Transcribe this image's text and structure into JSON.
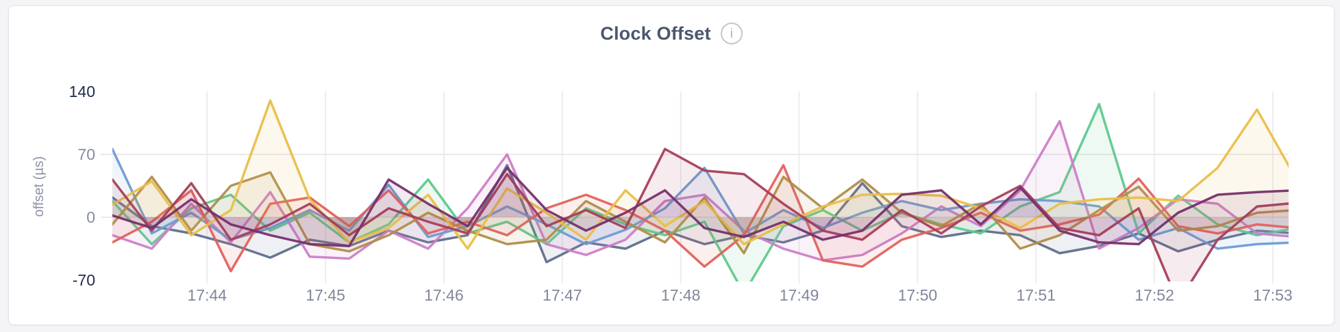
{
  "header": {
    "title": "Clock Offset",
    "info_icon": "i"
  },
  "chart_data": {
    "type": "line",
    "title": "Clock Offset",
    "xlabel": "",
    "ylabel": "offset (µs)",
    "ylim": [
      -70,
      140
    ],
    "grid": "on",
    "legend": "none",
    "x_domain_s": [
      0,
      596
    ],
    "sample_step_s": 20,
    "x_ticks": [
      {
        "label": "17:44",
        "t": 48
      },
      {
        "label": "17:45",
        "t": 108
      },
      {
        "label": "17:46",
        "t": 168
      },
      {
        "label": "17:47",
        "t": 228
      },
      {
        "label": "17:48",
        "t": 288
      },
      {
        "label": "17:49",
        "t": 348
      },
      {
        "label": "17:50",
        "t": 408
      },
      {
        "label": "17:51",
        "t": 468
      },
      {
        "label": "17:52",
        "t": 528
      },
      {
        "label": "17:53",
        "t": 588
      }
    ],
    "y_ticks": [
      {
        "label": "140",
        "v": 140,
        "strong": true,
        "grid": false
      },
      {
        "label": "70",
        "v": 70,
        "strong": false,
        "grid": true
      },
      {
        "label": "0",
        "v": 0,
        "strong": false,
        "grid": true
      },
      {
        "label": "-70",
        "v": -70,
        "strong": true,
        "grid": false
      }
    ],
    "series": [
      {
        "name": "slate",
        "color": "#5f6e8d",
        "values": [
          22,
          -10,
          -18,
          -30,
          -45,
          -25,
          -32,
          -15,
          -28,
          -20,
          58,
          -50,
          -28,
          -35,
          -15,
          -30,
          -20,
          -28,
          -15,
          38,
          -10,
          -22,
          -15,
          -20,
          -40,
          -32,
          -18,
          -38,
          -25,
          -15,
          -18
        ]
      },
      {
        "name": "green",
        "color": "#5fc98b",
        "values": [
          18,
          -30,
          10,
          25,
          -15,
          5,
          -28,
          -8,
          42,
          -18,
          -5,
          -30,
          10,
          -8,
          -20,
          -5,
          -85,
          -10,
          8,
          -15,
          5,
          -8,
          -18,
          12,
          28,
          126,
          -18,
          24,
          -8,
          -20,
          -12
        ]
      },
      {
        "name": "orchid",
        "color": "#cd7ec8",
        "values": [
          -20,
          -35,
          15,
          -28,
          28,
          -44,
          -46,
          -15,
          -35,
          10,
          70,
          -30,
          -42,
          -25,
          18,
          25,
          -15,
          -35,
          -48,
          -42,
          -18,
          12,
          -10,
          30,
          107,
          -35,
          -12,
          20,
          15,
          -18,
          -22
        ]
      },
      {
        "name": "blue",
        "color": "#6d9cd3",
        "values": [
          76,
          -18,
          5,
          -25,
          -12,
          8,
          -15,
          36,
          -22,
          -10,
          12,
          -8,
          -30,
          -14,
          10,
          55,
          -18,
          8,
          -12,
          5,
          18,
          8,
          15,
          20,
          18,
          12,
          -25,
          -12,
          -35,
          -30,
          -28
        ]
      },
      {
        "name": "red",
        "color": "#e0625d",
        "values": [
          -28,
          -5,
          30,
          -60,
          15,
          22,
          -10,
          30,
          -18,
          -5,
          -20,
          10,
          25,
          8,
          -15,
          -55,
          -20,
          58,
          -48,
          -55,
          -25,
          -12,
          5,
          -15,
          -8,
          3,
          43,
          -10,
          -18,
          -8,
          -12
        ]
      },
      {
        "name": "tan",
        "color": "#b08d4b",
        "values": [
          -8,
          45,
          -15,
          35,
          50,
          -30,
          -38,
          -20,
          5,
          -15,
          -30,
          -25,
          18,
          -5,
          -28,
          22,
          -40,
          45,
          10,
          42,
          5,
          -10,
          15,
          -35,
          -20,
          8,
          34,
          -15,
          -10,
          5,
          8
        ]
      },
      {
        "name": "yellow",
        "color": "#e9bf4a",
        "values": [
          14,
          40,
          -20,
          8,
          130,
          20,
          -28,
          -12,
          25,
          -35,
          32,
          5,
          -25,
          30,
          -10,
          18,
          -30,
          -8,
          12,
          25,
          26,
          24,
          10,
          -12,
          15,
          20,
          22,
          18,
          55,
          120,
          42
        ]
      },
      {
        "name": "wine",
        "color": "#a63f58",
        "values": [
          42,
          -15,
          38,
          -25,
          -8,
          15,
          -20,
          10,
          -5,
          -18,
          48,
          -10,
          8,
          -12,
          76,
          52,
          48,
          15,
          -15,
          -25,
          8,
          -18,
          12,
          35,
          -12,
          -20,
          10,
          -95,
          -25,
          12,
          16
        ]
      },
      {
        "name": "purple",
        "color": "#76306b",
        "values": [
          2,
          -12,
          20,
          -8,
          -20,
          -30,
          -32,
          42,
          15,
          -10,
          55,
          8,
          -15,
          5,
          30,
          -12,
          -22,
          -5,
          -25,
          -15,
          25,
          30,
          -8,
          33,
          -15,
          -28,
          -30,
          5,
          25,
          28,
          30
        ]
      }
    ]
  }
}
